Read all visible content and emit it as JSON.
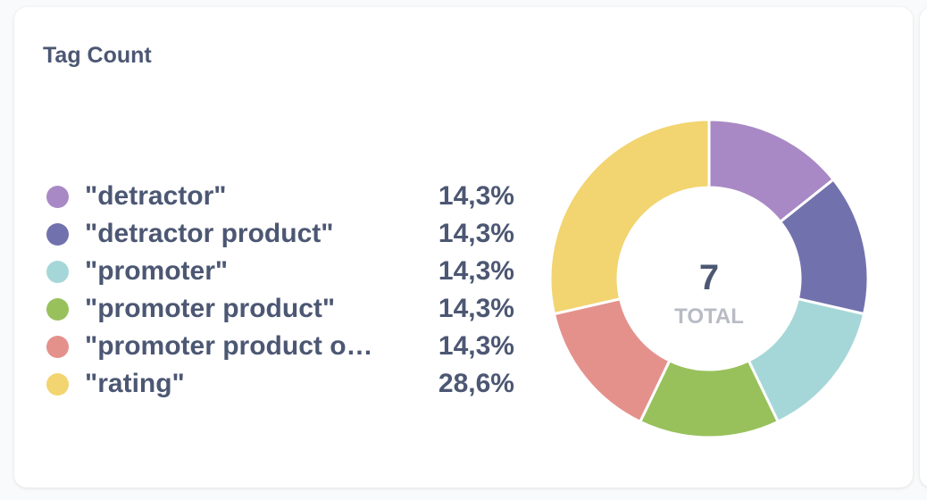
{
  "card": {
    "title": "Tag Count"
  },
  "chart_data": {
    "type": "pie",
    "variant": "donut",
    "title": "Tag Count",
    "total": {
      "value": "7",
      "label": "TOTAL"
    },
    "legend_position": "left",
    "slices": [
      {
        "label": "\"detractor\"",
        "value": 1,
        "percent": "14,3%",
        "color": "#a989c5"
      },
      {
        "label": "\"detractor product\"",
        "value": 1,
        "percent": "14,3%",
        "color": "#7172ad"
      },
      {
        "label": "\"promoter\"",
        "value": 1,
        "percent": "14,3%",
        "color": "#a6d7d8"
      },
      {
        "label": "\"promoter product\"",
        "value": 1,
        "percent": "14,3%",
        "color": "#98c15c"
      },
      {
        "label": "\"promoter product o…",
        "value": 1,
        "percent": "14,3%",
        "color": "#e4918c"
      },
      {
        "label": "\"rating\"",
        "value": 2,
        "percent": "28,6%",
        "color": "#f2d470"
      }
    ]
  }
}
